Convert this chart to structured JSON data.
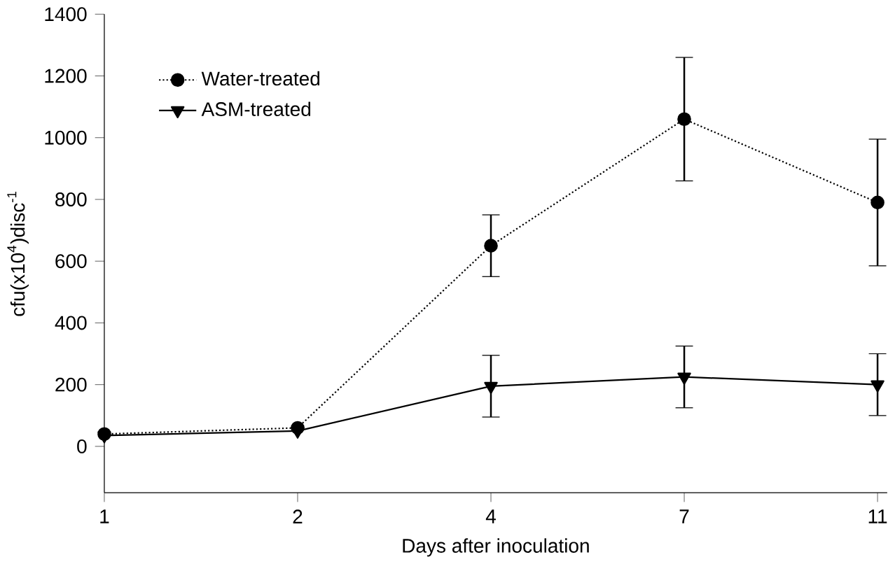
{
  "chart_data": {
    "type": "line",
    "xlabel": "Days after inoculation",
    "ylabel": "cfu(x10$^{4}$)disc$^{-1}$",
    "categories": [
      "1",
      "2",
      "4",
      "7",
      "11"
    ],
    "series": [
      {
        "name": "Water-treated",
        "color": "#000000",
        "marker": "circle",
        "line_style": "dotted",
        "values": [
          40,
          60,
          650,
          1060,
          790
        ],
        "errors": [
          null,
          null,
          100,
          200,
          205
        ]
      },
      {
        "name": "ASM-treated",
        "color": "#000000",
        "marker": "triangle",
        "line_style": "solid",
        "values": [
          35,
          50,
          195,
          225,
          200
        ],
        "errors": [
          null,
          null,
          100,
          100,
          100
        ]
      }
    ],
    "ylim": [
      -150,
      1400
    ],
    "yticks": [
      0,
      200,
      400,
      600,
      800,
      1000,
      1200,
      1400
    ],
    "grid": false,
    "legend": "top left"
  }
}
